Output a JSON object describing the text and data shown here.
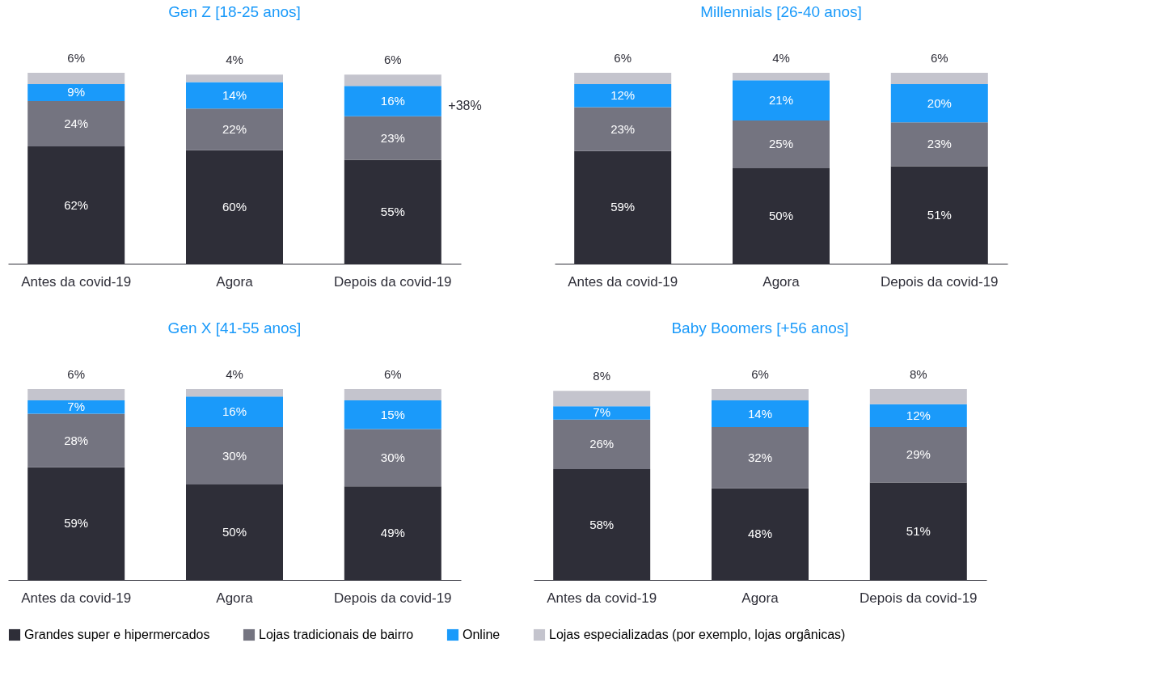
{
  "chart_data": [
    {
      "type": "bar",
      "stacked": true,
      "legend": "bottom",
      "title": "Gen Z [18-25 anos]",
      "categories": [
        "Antes da covid-19",
        "Agora",
        "Depois da covid-19"
      ],
      "annotations": [
        "+38%"
      ],
      "series": [
        {
          "name": "Grandes super e hipermercados",
          "color": "#2e2e38",
          "values": [
            62,
            60,
            55
          ],
          "value_labels": [
            "62%",
            "60%",
            "55%"
          ]
        },
        {
          "name": "Lojas tradicionais de bairro",
          "color": "#747480",
          "values": [
            24,
            22,
            23
          ],
          "value_labels": [
            "24%",
            "22%",
            "23%"
          ]
        },
        {
          "name": "Online",
          "color": "#1a9afa",
          "values": [
            9,
            14,
            16
          ],
          "value_labels": [
            "9%",
            "14%",
            "16%"
          ]
        },
        {
          "name": "Lojas especializadas (por exemplo, lojas orgânicas)",
          "color": "#c4c4cd",
          "values": [
            6,
            4,
            6
          ],
          "value_labels": [
            "6%",
            "4%",
            "6%"
          ]
        }
      ]
    },
    {
      "type": "bar",
      "stacked": true,
      "legend": "bottom",
      "title": "Millennials [26-40 anos]",
      "categories": [
        "Antes da covid-19",
        "Agora",
        "Depois da covid-19"
      ],
      "series": [
        {
          "name": "Grandes super e hipermercados",
          "color": "#2e2e38",
          "values": [
            59,
            50,
            51
          ],
          "value_labels": [
            "59%",
            "50%",
            "51%"
          ]
        },
        {
          "name": "Lojas tradicionais de bairro",
          "color": "#747480",
          "values": [
            23,
            25,
            23
          ],
          "value_labels": [
            "23%",
            "25%",
            "23%"
          ]
        },
        {
          "name": "Online",
          "color": "#1a9afa",
          "values": [
            12,
            21,
            20
          ],
          "value_labels": [
            "12%",
            "21%",
            "20%"
          ]
        },
        {
          "name": "Lojas especializadas (por exemplo, lojas orgânicas)",
          "color": "#c4c4cd",
          "values": [
            6,
            4,
            6
          ],
          "value_labels": [
            "6%",
            "4%",
            "6%"
          ]
        }
      ]
    },
    {
      "type": "bar",
      "stacked": true,
      "legend": "bottom",
      "title": "Gen X [41-55 anos]",
      "categories": [
        "Antes da covid-19",
        "Agora",
        "Depois da covid-19"
      ],
      "series": [
        {
          "name": "Grandes super e hipermercados",
          "color": "#2e2e38",
          "values": [
            59,
            50,
            49
          ],
          "value_labels": [
            "59%",
            "50%",
            "49%"
          ]
        },
        {
          "name": "Lojas tradicionais de bairro",
          "color": "#747480",
          "values": [
            28,
            30,
            30
          ],
          "value_labels": [
            "28%",
            "30%",
            "30%"
          ]
        },
        {
          "name": "Online",
          "color": "#1a9afa",
          "values": [
            7,
            16,
            15
          ],
          "value_labels": [
            "7%",
            "16%",
            "15%"
          ]
        },
        {
          "name": "Lojas especializadas (por exemplo, lojas orgânicas)",
          "color": "#c4c4cd",
          "values": [
            6,
            4,
            6
          ],
          "value_labels": [
            "6%",
            "4%",
            "6%"
          ]
        }
      ]
    },
    {
      "type": "bar",
      "stacked": true,
      "legend": "bottom",
      "title": "Baby Boomers [+56 anos]",
      "categories": [
        "Antes da covid-19",
        "Agora",
        "Depois da covid-19"
      ],
      "series": [
        {
          "name": "Grandes super e hipermercados",
          "color": "#2e2e38",
          "values": [
            58,
            48,
            51
          ],
          "value_labels": [
            "58%",
            "48%",
            "51%"
          ]
        },
        {
          "name": "Lojas tradicionais de bairro",
          "color": "#747480",
          "values": [
            26,
            32,
            29
          ],
          "value_labels": [
            "26%",
            "32%",
            "29%"
          ]
        },
        {
          "name": "Online",
          "color": "#1a9afa",
          "values": [
            7,
            14,
            12
          ],
          "value_labels": [
            "7%",
            "14%",
            "12%"
          ]
        },
        {
          "name": "Lojas especializadas (por exemplo, lojas orgânicas)",
          "color": "#c4c4cd",
          "values": [
            8,
            6,
            8
          ],
          "value_labels": [
            "8%",
            "6%",
            "8%"
          ]
        }
      ]
    }
  ]
}
